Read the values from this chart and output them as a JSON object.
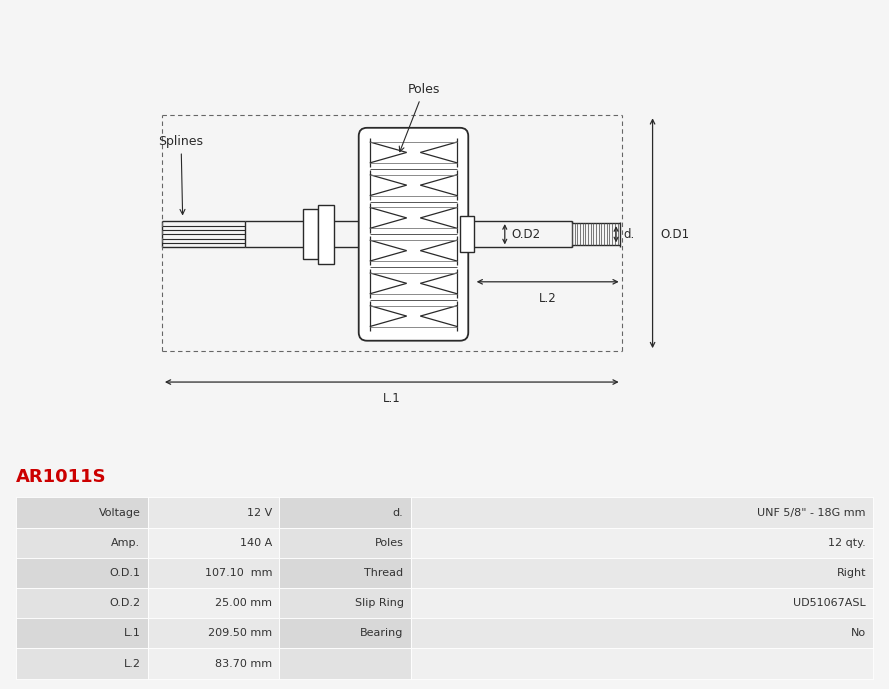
{
  "title": "AR1011S",
  "title_color": "#cc0000",
  "bg_color": "#f5f5f5",
  "table_data": [
    [
      "Voltage",
      "12 V",
      "d.",
      "UNF 5/8\" - 18G mm"
    ],
    [
      "Amp.",
      "140 A",
      "Poles",
      "12 qty."
    ],
    [
      "O.D.1",
      "107.10  mm",
      "Thread",
      "Right"
    ],
    [
      "O.D.2",
      "25.00 mm",
      "Slip Ring",
      "UD51067ASL"
    ],
    [
      "L.1",
      "209.50 mm",
      "Bearing",
      "No"
    ],
    [
      "L.2",
      "83.70 mm",
      "",
      ""
    ]
  ],
  "diagram_labels": {
    "poles": "Poles",
    "splines": "Splines",
    "od1": "O.D1",
    "od2": "O.D2",
    "d": "d.",
    "l1": "L.1",
    "l2": "L.2"
  },
  "line_color": "#2a2a2a",
  "dashed_color": "#555555"
}
